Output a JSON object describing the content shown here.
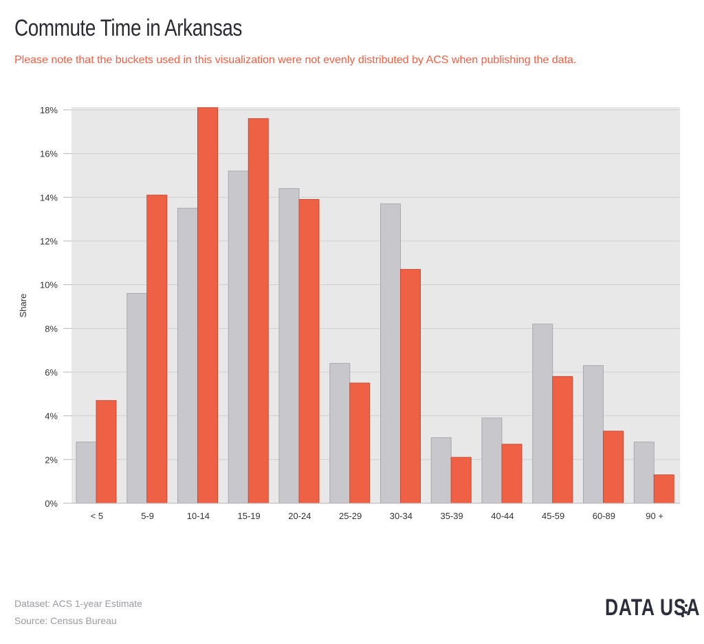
{
  "title": "Commute Time in Arkansas",
  "subtitle": "Please note that the buckets used in this visualization were not evenly distributed by ACS when publishing the data.",
  "footer": {
    "dataset": "Dataset: ACS 1-year Estimate",
    "source": "Source: Census Bureau"
  },
  "logo": {
    "text": "DATA USA",
    "icon": "data-usa-dots-icon"
  },
  "chart_data": {
    "type": "bar",
    "title": "Commute Time in Arkansas",
    "xlabel": "",
    "ylabel": "Share",
    "ylim": [
      0,
      18
    ],
    "yticks": [
      "0%",
      "2%",
      "4%",
      "6%",
      "8%",
      "10%",
      "12%",
      "14%",
      "16%",
      "18%"
    ],
    "grid": true,
    "legend": "none",
    "categories": [
      "< 5",
      "5-9",
      "10-14",
      "15-19",
      "20-24",
      "25-29",
      "30-34",
      "35-39",
      "40-44",
      "45-59",
      "60-89",
      "90 +"
    ],
    "series": [
      {
        "color": "#c8c8cc",
        "values": [
          2.8,
          9.6,
          13.5,
          15.2,
          14.4,
          6.4,
          13.7,
          3.0,
          3.9,
          8.2,
          6.3,
          2.8
        ]
      },
      {
        "color": "#ef6145",
        "values": [
          4.7,
          14.1,
          18.1,
          17.6,
          13.9,
          5.5,
          10.7,
          2.1,
          2.7,
          5.8,
          3.3,
          1.3
        ]
      }
    ]
  }
}
